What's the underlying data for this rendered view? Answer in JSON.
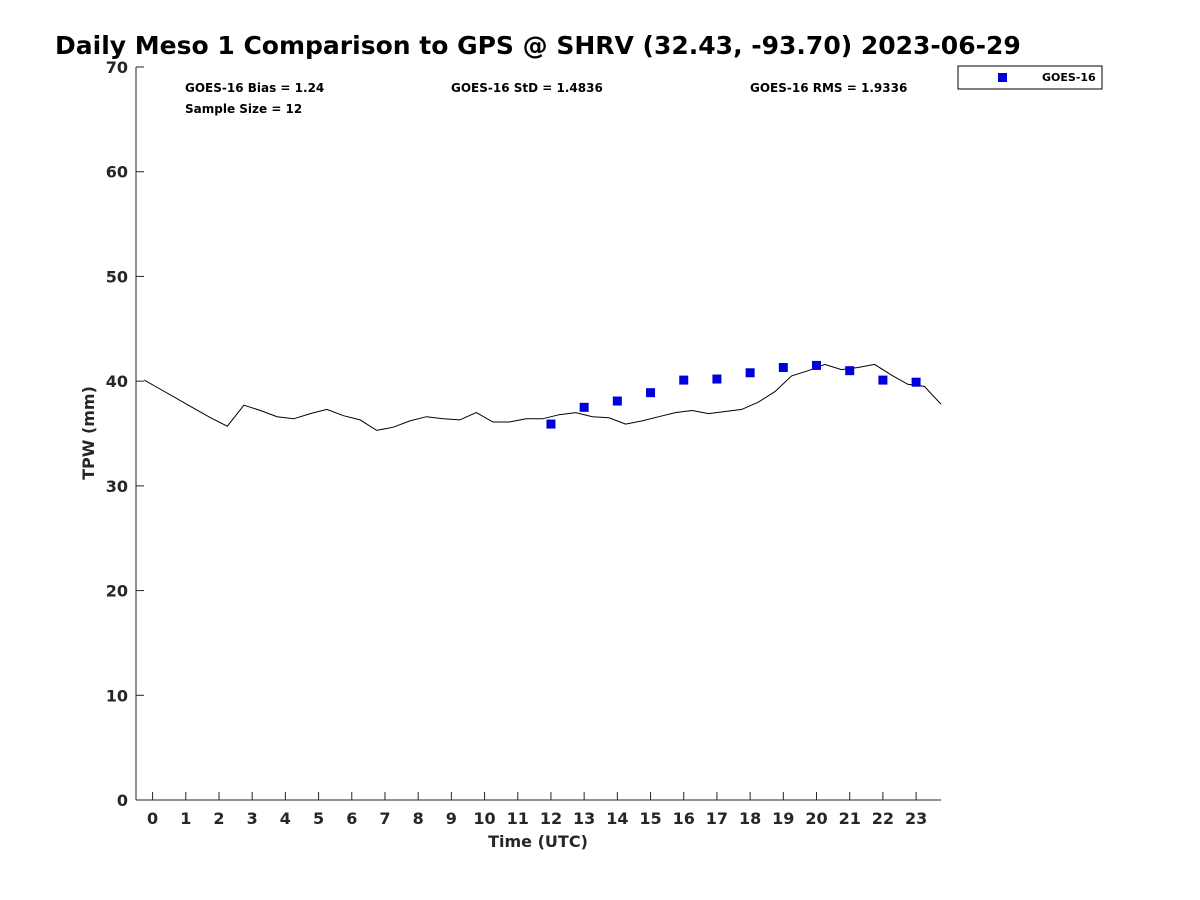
{
  "chart_data": {
    "type": "scatter",
    "title": "Daily Meso 1 Comparison to GPS @ SHRV (32.43, -93.70) 2023-06-29",
    "xlabel": "Time (UTC)",
    "ylabel": "TPW (mm)",
    "xlim": [
      -0.5,
      23.75
    ],
    "ylim": [
      0,
      70
    ],
    "xticks": [
      0,
      1,
      2,
      3,
      4,
      5,
      6,
      7,
      8,
      9,
      10,
      11,
      12,
      13,
      14,
      15,
      16,
      17,
      18,
      19,
      20,
      21,
      22,
      23
    ],
    "xtick_labels": [
      "0",
      "1",
      "2",
      "3",
      "4",
      "5",
      "6",
      "7",
      "8",
      "9",
      "10",
      "11",
      "12",
      "13",
      "14",
      "15",
      "16",
      "17",
      "18",
      "19",
      "20",
      "21",
      "22",
      "23"
    ],
    "yticks": [
      0,
      10,
      20,
      30,
      40,
      50,
      60,
      70
    ],
    "ytick_labels": [
      "0",
      "10",
      "20",
      "30",
      "40",
      "50",
      "60",
      "70"
    ],
    "grid": false,
    "legend_position": "top-right, outside plot",
    "annotations": {
      "bias": "GOES-16 Bias = 1.24",
      "std": "GOES-16 StD = 1.4836",
      "rms": "GOES-16 RMS = 1.9336",
      "sample_size": "Sample Size = 12"
    },
    "series": [
      {
        "name": "GOES-16",
        "kind": "scatter",
        "marker": "square",
        "color": "#0000dd",
        "x": [
          12,
          13,
          14,
          15,
          16,
          17,
          18,
          19,
          20,
          21,
          22,
          23
        ],
        "y": [
          35.9,
          37.5,
          38.1,
          38.9,
          40.1,
          40.2,
          40.8,
          41.3,
          41.5,
          41.0,
          40.1,
          39.9
        ]
      },
      {
        "kind": "line",
        "color": "#000000",
        "x": [
          -0.25,
          0.25,
          0.75,
          1.25,
          1.75,
          2.25,
          2.75,
          3.25,
          3.75,
          4.25,
          4.75,
          5.25,
          5.75,
          6.25,
          6.75,
          7.25,
          7.75,
          8.25,
          8.75,
          9.25,
          9.75,
          10.25,
          10.75,
          11.25,
          11.75,
          12.25,
          12.75,
          13.25,
          13.75,
          14.25,
          14.75,
          15.25,
          15.75,
          16.25,
          16.75,
          17.25,
          17.75,
          18.25,
          18.75,
          19.25,
          19.75,
          20.25,
          20.75,
          21.25,
          21.75,
          22.25,
          22.75,
          23.25,
          23.75
        ],
        "y": [
          40.1,
          39.2,
          38.3,
          37.4,
          36.5,
          35.7,
          37.7,
          37.2,
          36.6,
          36.4,
          36.9,
          37.3,
          36.7,
          36.3,
          35.3,
          35.6,
          36.2,
          36.6,
          36.4,
          36.3,
          37.0,
          36.1,
          36.1,
          36.4,
          36.4,
          36.8,
          37.0,
          36.6,
          36.5,
          35.9,
          36.2,
          36.6,
          37.0,
          37.2,
          36.9,
          37.1,
          37.3,
          38.0,
          39.0,
          40.5,
          41.0,
          41.6,
          41.1,
          41.3,
          41.6,
          40.6,
          39.7,
          39.5,
          37.8
        ]
      }
    ]
  }
}
